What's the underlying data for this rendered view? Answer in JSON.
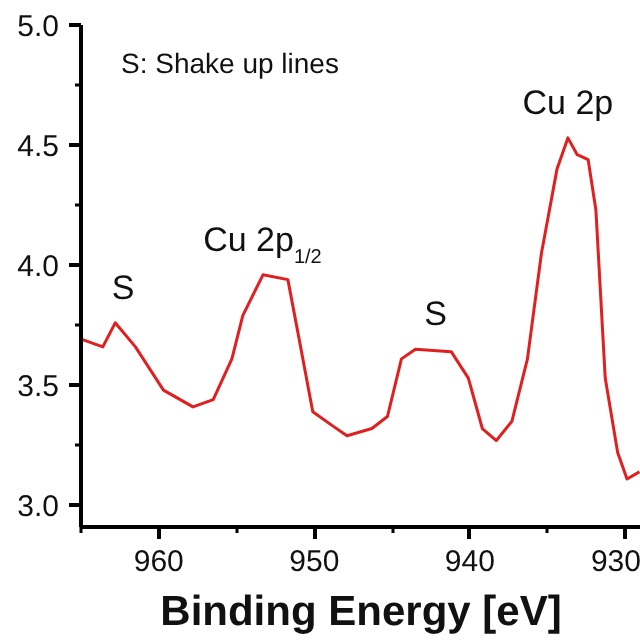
{
  "chart_data": {
    "type": "line",
    "xlabel": "Binding Energy [eV]",
    "x": [
      964.9,
      963.6,
      962.8,
      961.5,
      959.7,
      957.8,
      956.5,
      955.3,
      954.6,
      953.3,
      951.7,
      951.0,
      950.1,
      948.8,
      947.9,
      946.3,
      945.3,
      944.4,
      943.5,
      941.2,
      940.1,
      939.2,
      938.3,
      937.3,
      936.3,
      935.4,
      934.4,
      933.7,
      933.1,
      932.4,
      931.9,
      931.3,
      930.5,
      929.9,
      929.1
    ],
    "series": [
      {
        "color": "#e02020",
        "values": [
          3.69,
          3.66,
          3.76,
          3.66,
          3.48,
          3.41,
          3.44,
          3.61,
          3.79,
          3.96,
          3.94,
          3.7,
          3.39,
          3.33,
          3.29,
          3.32,
          3.37,
          3.61,
          3.65,
          3.64,
          3.53,
          3.32,
          3.27,
          3.35,
          3.61,
          4.05,
          4.4,
          4.53,
          4.46,
          4.44,
          4.23,
          3.53,
          3.22,
          3.11,
          3.14
        ]
      }
    ],
    "xlim": [
      965,
      929
    ],
    "xticks": [
      960,
      950,
      940,
      930
    ],
    "ylim": [
      2.91,
      5.0
    ],
    "yticks": [
      {
        "value": 3,
        "label": "3.0"
      },
      3.5,
      {
        "value": 4,
        "label": "4.0"
      },
      4.5,
      {
        "value": 5,
        "label": "5.0"
      }
    ],
    "grid": false,
    "line_style": "solid",
    "marker": "none",
    "annotations": [
      "S: Shake up lines",
      {
        "text": "S",
        "x": 962.3,
        "y": 3.76
      },
      {
        "text": "Cu 2p$_{1/2}$",
        "x": 952.6,
        "y": 3.96
      },
      {
        "text": "S",
        "x": 942.2,
        "y": 3.65
      },
      {
        "text": "Cu 2p",
        "x": 933.7,
        "y": 4.53
      }
    ]
  }
}
